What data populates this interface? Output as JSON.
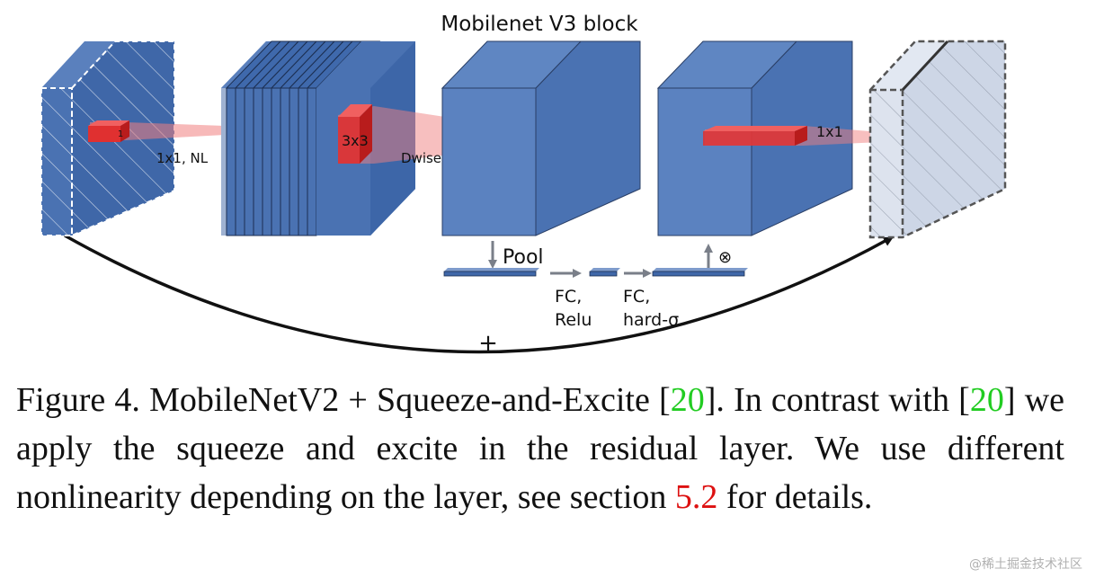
{
  "diagram": {
    "title": "Mobilenet V3 block",
    "labels": {
      "kernel_small": "1",
      "conv1": "1x1, NL",
      "kernel_dw": "3x3",
      "dwise": "Dwise, NL",
      "conv_out": "1x1",
      "pool": "Pool",
      "fc1_line1": "FC,",
      "fc1_line2": "Relu",
      "fc2_line1": "FC,",
      "fc2_line2": "hard-σ",
      "multiply": "⊗",
      "add": "+"
    },
    "colors": {
      "block_blue": "#4a72b2",
      "block_top": "#5f86c2",
      "ghost_fill": "#d9e0ec",
      "kernel_red": "#e03030",
      "beam_red": "#f08080",
      "arrow_gray": "#7a7f89"
    }
  },
  "caption": {
    "part1": "Figure 4. MobileNetV2 + Squeeze-and-Excite [",
    "cite1": "20",
    "part2": "].  In contrast with [",
    "cite2": "20",
    "part3": "] we apply the squeeze and excite in the residual layer. We use different nonlinearity depending on the layer, see section ",
    "section_ref": "5.2",
    "part4": " for details."
  },
  "watermark": "@稀土掘金技术社区"
}
